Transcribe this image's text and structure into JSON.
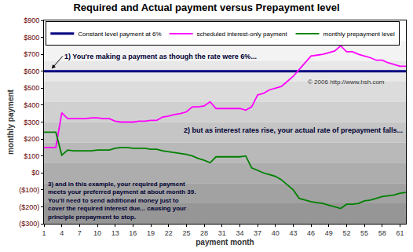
{
  "chart_data": {
    "type": "line",
    "title": "Required and Actual payment versus Prepayment level",
    "x_label": "payment month",
    "y_label": "monthly payment",
    "x": [
      1,
      2,
      3,
      4,
      5,
      6,
      7,
      8,
      9,
      10,
      11,
      12,
      13,
      14,
      15,
      16,
      17,
      18,
      19,
      20,
      21,
      22,
      23,
      24,
      25,
      26,
      27,
      28,
      29,
      30,
      31,
      32,
      33,
      34,
      35,
      36,
      37,
      38,
      39,
      40,
      41,
      42,
      43,
      44,
      45,
      46,
      47,
      48,
      49,
      50,
      51,
      52,
      53,
      54,
      55,
      56,
      57,
      58,
      59,
      60,
      61,
      62
    ],
    "series": [
      {
        "name": "Constant level payment at 6%",
        "color": "#000080",
        "values": [
          600,
          600,
          600,
          600,
          600,
          600,
          600,
          600,
          600,
          600,
          600,
          600,
          600,
          600,
          600,
          600,
          600,
          600,
          600,
          600,
          600,
          600,
          600,
          600,
          600,
          600,
          600,
          600,
          600,
          600,
          600,
          600,
          600,
          600,
          600,
          600,
          600,
          600,
          600,
          600,
          600,
          600,
          600,
          600,
          600,
          600,
          600,
          600,
          600,
          600,
          600,
          600,
          600,
          600,
          600,
          600,
          600,
          600,
          600,
          600,
          600,
          600
        ]
      },
      {
        "name": "scheduled interest-only payment",
        "color": "#ff00ff",
        "values": [
          150,
          150,
          150,
          355,
          320,
          320,
          320,
          320,
          325,
          325,
          320,
          320,
          305,
          300,
          300,
          300,
          305,
          305,
          310,
          310,
          330,
          335,
          345,
          350,
          360,
          390,
          390,
          395,
          420,
          380,
          380,
          380,
          380,
          380,
          370,
          390,
          460,
          470,
          490,
          500,
          510,
          540,
          570,
          610,
          650,
          690,
          695,
          700,
          710,
          720,
          750,
          715,
          715,
          700,
          690,
          680,
          665,
          665,
          650,
          640,
          630,
          630
        ]
      },
      {
        "name": "monthly prepayment level",
        "color": "#008000",
        "values": [
          240,
          240,
          240,
          105,
          135,
          130,
          130,
          130,
          130,
          135,
          135,
          135,
          145,
          150,
          150,
          145,
          145,
          145,
          140,
          140,
          130,
          125,
          120,
          115,
          110,
          100,
          85,
          75,
          60,
          95,
          95,
          95,
          95,
          95,
          100,
          30,
          15,
          0,
          -10,
          -20,
          -40,
          -70,
          -100,
          -150,
          -160,
          -170,
          -175,
          -180,
          -190,
          -200,
          -210,
          -185,
          -185,
          -180,
          -165,
          -160,
          -150,
          -140,
          -135,
          -130,
          -120,
          -115
        ]
      }
    ],
    "xlim": [
      1,
      62
    ],
    "xticks": [
      1,
      4,
      7,
      10,
      13,
      16,
      19,
      22,
      25,
      28,
      31,
      34,
      37,
      40,
      43,
      46,
      49,
      52,
      55,
      58,
      61
    ],
    "ylim": [
      -300,
      900
    ],
    "yticks": [
      {
        "value": 900,
        "label": "$900"
      },
      {
        "value": 800,
        "label": "$800"
      },
      {
        "value": 700,
        "label": "$700"
      },
      {
        "value": 600,
        "label": "$600"
      },
      {
        "value": 500,
        "label": "$500"
      },
      {
        "value": 400,
        "label": "$400"
      },
      {
        "value": 300,
        "label": "$300"
      },
      {
        "value": 200,
        "label": "$200"
      },
      {
        "value": 100,
        "label": "$100"
      },
      {
        "value": 0,
        "label": "$0"
      },
      {
        "value": -100,
        "label": "($100)"
      },
      {
        "value": -200,
        "label": "($200)"
      },
      {
        "value": -300,
        "label": "($300)"
      }
    ],
    "grid": false,
    "legend": "top",
    "annotations": [
      "1) You're making a payment as though the rate were 6%...",
      "2) but as interest rates rise, your actual rate of prepayment falls...",
      [
        "3) and in this example, your required payment",
        "meets your preferred payment at about month 39.",
        "You'll need to send additional money just to",
        "cover the required interest due... causing your",
        "principle prepayment to stop."
      ],
      "© 2006 http://www.hsh.com"
    ]
  }
}
